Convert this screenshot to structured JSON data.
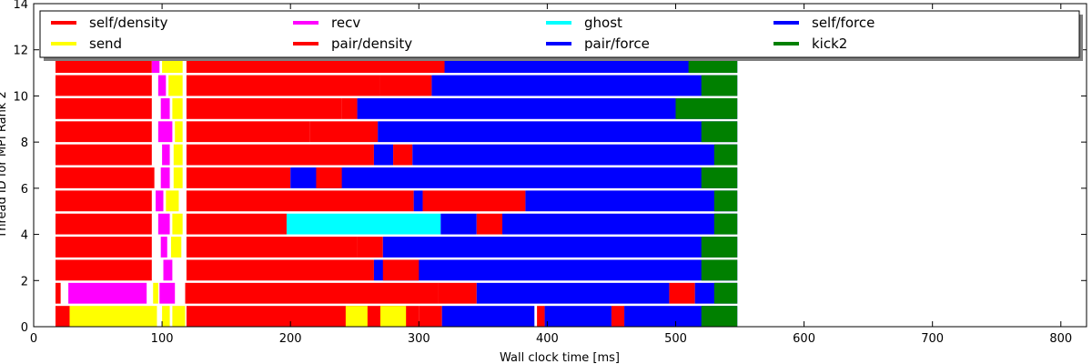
{
  "chart_data": {
    "type": "bar",
    "subtype": "gantt-timeline",
    "title": "",
    "xlabel": "Wall clock time [ms]",
    "ylabel": "Thread ID for MPI Rank 2",
    "xlim": [
      0,
      820
    ],
    "ylim": [
      0,
      14
    ],
    "xticks": [
      0,
      100,
      200,
      300,
      400,
      500,
      600,
      700,
      800
    ],
    "yticks": [
      0,
      2,
      4,
      6,
      8,
      10,
      12,
      14
    ],
    "grid": false,
    "legend_position": "top",
    "legend": [
      {
        "name": "self/density",
        "color": "#ff0000"
      },
      {
        "name": "send",
        "color": "#ffff00"
      },
      {
        "name": "recv",
        "color": "#ff00ff"
      },
      {
        "name": "pair/density",
        "color": "#ff0000"
      },
      {
        "name": "ghost",
        "color": "#00ffff"
      },
      {
        "name": "pair/force",
        "color": "#0000ff"
      },
      {
        "name": "self/force",
        "color": "#0000ff"
      },
      {
        "name": "kick2",
        "color": "#008000"
      }
    ],
    "colors": {
      "self/density": "#ff0000",
      "pair/density": "#ff0000",
      "send": "#ffff00",
      "recv": "#ff00ff",
      "ghost": "#00ffff",
      "pair/force": "#0000ff",
      "self/force": "#0000ff",
      "kick2": "#008000"
    },
    "series": [
      {
        "thread": 0,
        "tasks": [
          [
            "self/density",
            17,
            28
          ],
          [
            "send",
            28,
            96
          ],
          [
            "send",
            100,
            106
          ],
          [
            "send",
            108,
            118
          ],
          [
            "self/density",
            119,
            300
          ],
          [
            "send",
            243,
            260
          ],
          [
            "send",
            270,
            290
          ],
          [
            "self/density",
            300,
            318
          ],
          [
            "pair/force",
            318,
            390
          ],
          [
            "pair/density",
            392,
            398
          ],
          [
            "pair/force",
            398,
            450
          ],
          [
            "pair/density",
            450,
            460
          ],
          [
            "pair/force",
            460,
            548
          ],
          [
            "kick2",
            520,
            548
          ]
        ]
      },
      {
        "thread": 1,
        "tasks": [
          [
            "self/density",
            17,
            21
          ],
          [
            "recv",
            27,
            88
          ],
          [
            "send",
            93,
            97
          ],
          [
            "recv",
            98,
            110
          ],
          [
            "self/density",
            118,
            315
          ],
          [
            "pair/density",
            315,
            345
          ],
          [
            "pair/force",
            345,
            495
          ],
          [
            "pair/density",
            495,
            515
          ],
          [
            "pair/force",
            515,
            548
          ],
          [
            "kick2",
            530,
            548
          ]
        ]
      },
      {
        "thread": 2,
        "tasks": [
          [
            "self/density",
            17,
            92
          ],
          [
            "recv",
            101,
            108
          ],
          [
            "self/density",
            119,
            265
          ],
          [
            "pair/force",
            265,
            548
          ],
          [
            "pair/density",
            272,
            300
          ],
          [
            "kick2",
            520,
            548
          ]
        ]
      },
      {
        "thread": 3,
        "tasks": [
          [
            "self/density",
            17,
            92
          ],
          [
            "recv",
            99,
            104
          ],
          [
            "send",
            107,
            115
          ],
          [
            "self/density",
            119,
            252
          ],
          [
            "pair/density",
            252,
            272
          ],
          [
            "pair/force",
            272,
            548
          ],
          [
            "kick2",
            520,
            548
          ]
        ]
      },
      {
        "thread": 4,
        "tasks": [
          [
            "self/density",
            17,
            92
          ],
          [
            "recv",
            97,
            106
          ],
          [
            "send",
            108,
            116
          ],
          [
            "self/density",
            119,
            197
          ],
          [
            "ghost",
            197,
            317
          ],
          [
            "pair/force",
            317,
            345
          ],
          [
            "pair/density",
            345,
            365
          ],
          [
            "pair/force",
            365,
            548
          ],
          [
            "kick2",
            530,
            548
          ]
        ]
      },
      {
        "thread": 5,
        "tasks": [
          [
            "self/density",
            17,
            92
          ],
          [
            "recv",
            95,
            101
          ],
          [
            "send",
            103,
            113
          ],
          [
            "self/density",
            119,
            296
          ],
          [
            "pair/force",
            296,
            303
          ],
          [
            "pair/density",
            303,
            383
          ],
          [
            "pair/force",
            383,
            548
          ],
          [
            "kick2",
            530,
            548
          ]
        ]
      },
      {
        "thread": 6,
        "tasks": [
          [
            "self/density",
            17,
            94
          ],
          [
            "recv",
            99,
            106
          ],
          [
            "send",
            109,
            116
          ],
          [
            "self/density",
            119,
            200
          ],
          [
            "pair/force",
            200,
            548
          ],
          [
            "pair/density",
            220,
            240
          ],
          [
            "kick2",
            520,
            548
          ]
        ]
      },
      {
        "thread": 7,
        "tasks": [
          [
            "self/density",
            17,
            92
          ],
          [
            "recv",
            100,
            106
          ],
          [
            "send",
            109,
            116
          ],
          [
            "self/density",
            119,
            265
          ],
          [
            "pair/force",
            265,
            280
          ],
          [
            "pair/density",
            280,
            295
          ],
          [
            "pair/force",
            295,
            548
          ],
          [
            "kick2",
            530,
            548
          ]
        ]
      },
      {
        "thread": 8,
        "tasks": [
          [
            "self/density",
            17,
            92
          ],
          [
            "recv",
            97,
            108
          ],
          [
            "send",
            110,
            116
          ],
          [
            "self/density",
            119,
            215
          ],
          [
            "self/density",
            215,
            268
          ],
          [
            "pair/force",
            268,
            548
          ],
          [
            "kick2",
            520,
            548
          ]
        ]
      },
      {
        "thread": 9,
        "tasks": [
          [
            "self/density",
            17,
            92
          ],
          [
            "recv",
            99,
            106
          ],
          [
            "send",
            108,
            116
          ],
          [
            "self/density",
            119,
            240
          ],
          [
            "pair/density",
            240,
            252
          ],
          [
            "pair/force",
            252,
            548
          ],
          [
            "kick2",
            500,
            548
          ]
        ]
      },
      {
        "thread": 10,
        "tasks": [
          [
            "self/density",
            17,
            92
          ],
          [
            "recv",
            97,
            103
          ],
          [
            "send",
            105,
            116
          ],
          [
            "self/density",
            119,
            270
          ],
          [
            "pair/density",
            270,
            310
          ],
          [
            "pair/force",
            310,
            548
          ],
          [
            "kick2",
            520,
            548
          ]
        ]
      },
      {
        "thread": 11,
        "tasks": [
          [
            "self/density",
            17,
            92
          ],
          [
            "recv",
            92,
            98
          ],
          [
            "send",
            100,
            116
          ],
          [
            "self/density",
            119,
            320
          ],
          [
            "pair/force",
            320,
            548
          ],
          [
            "kick2",
            510,
            548
          ]
        ]
      }
    ]
  }
}
